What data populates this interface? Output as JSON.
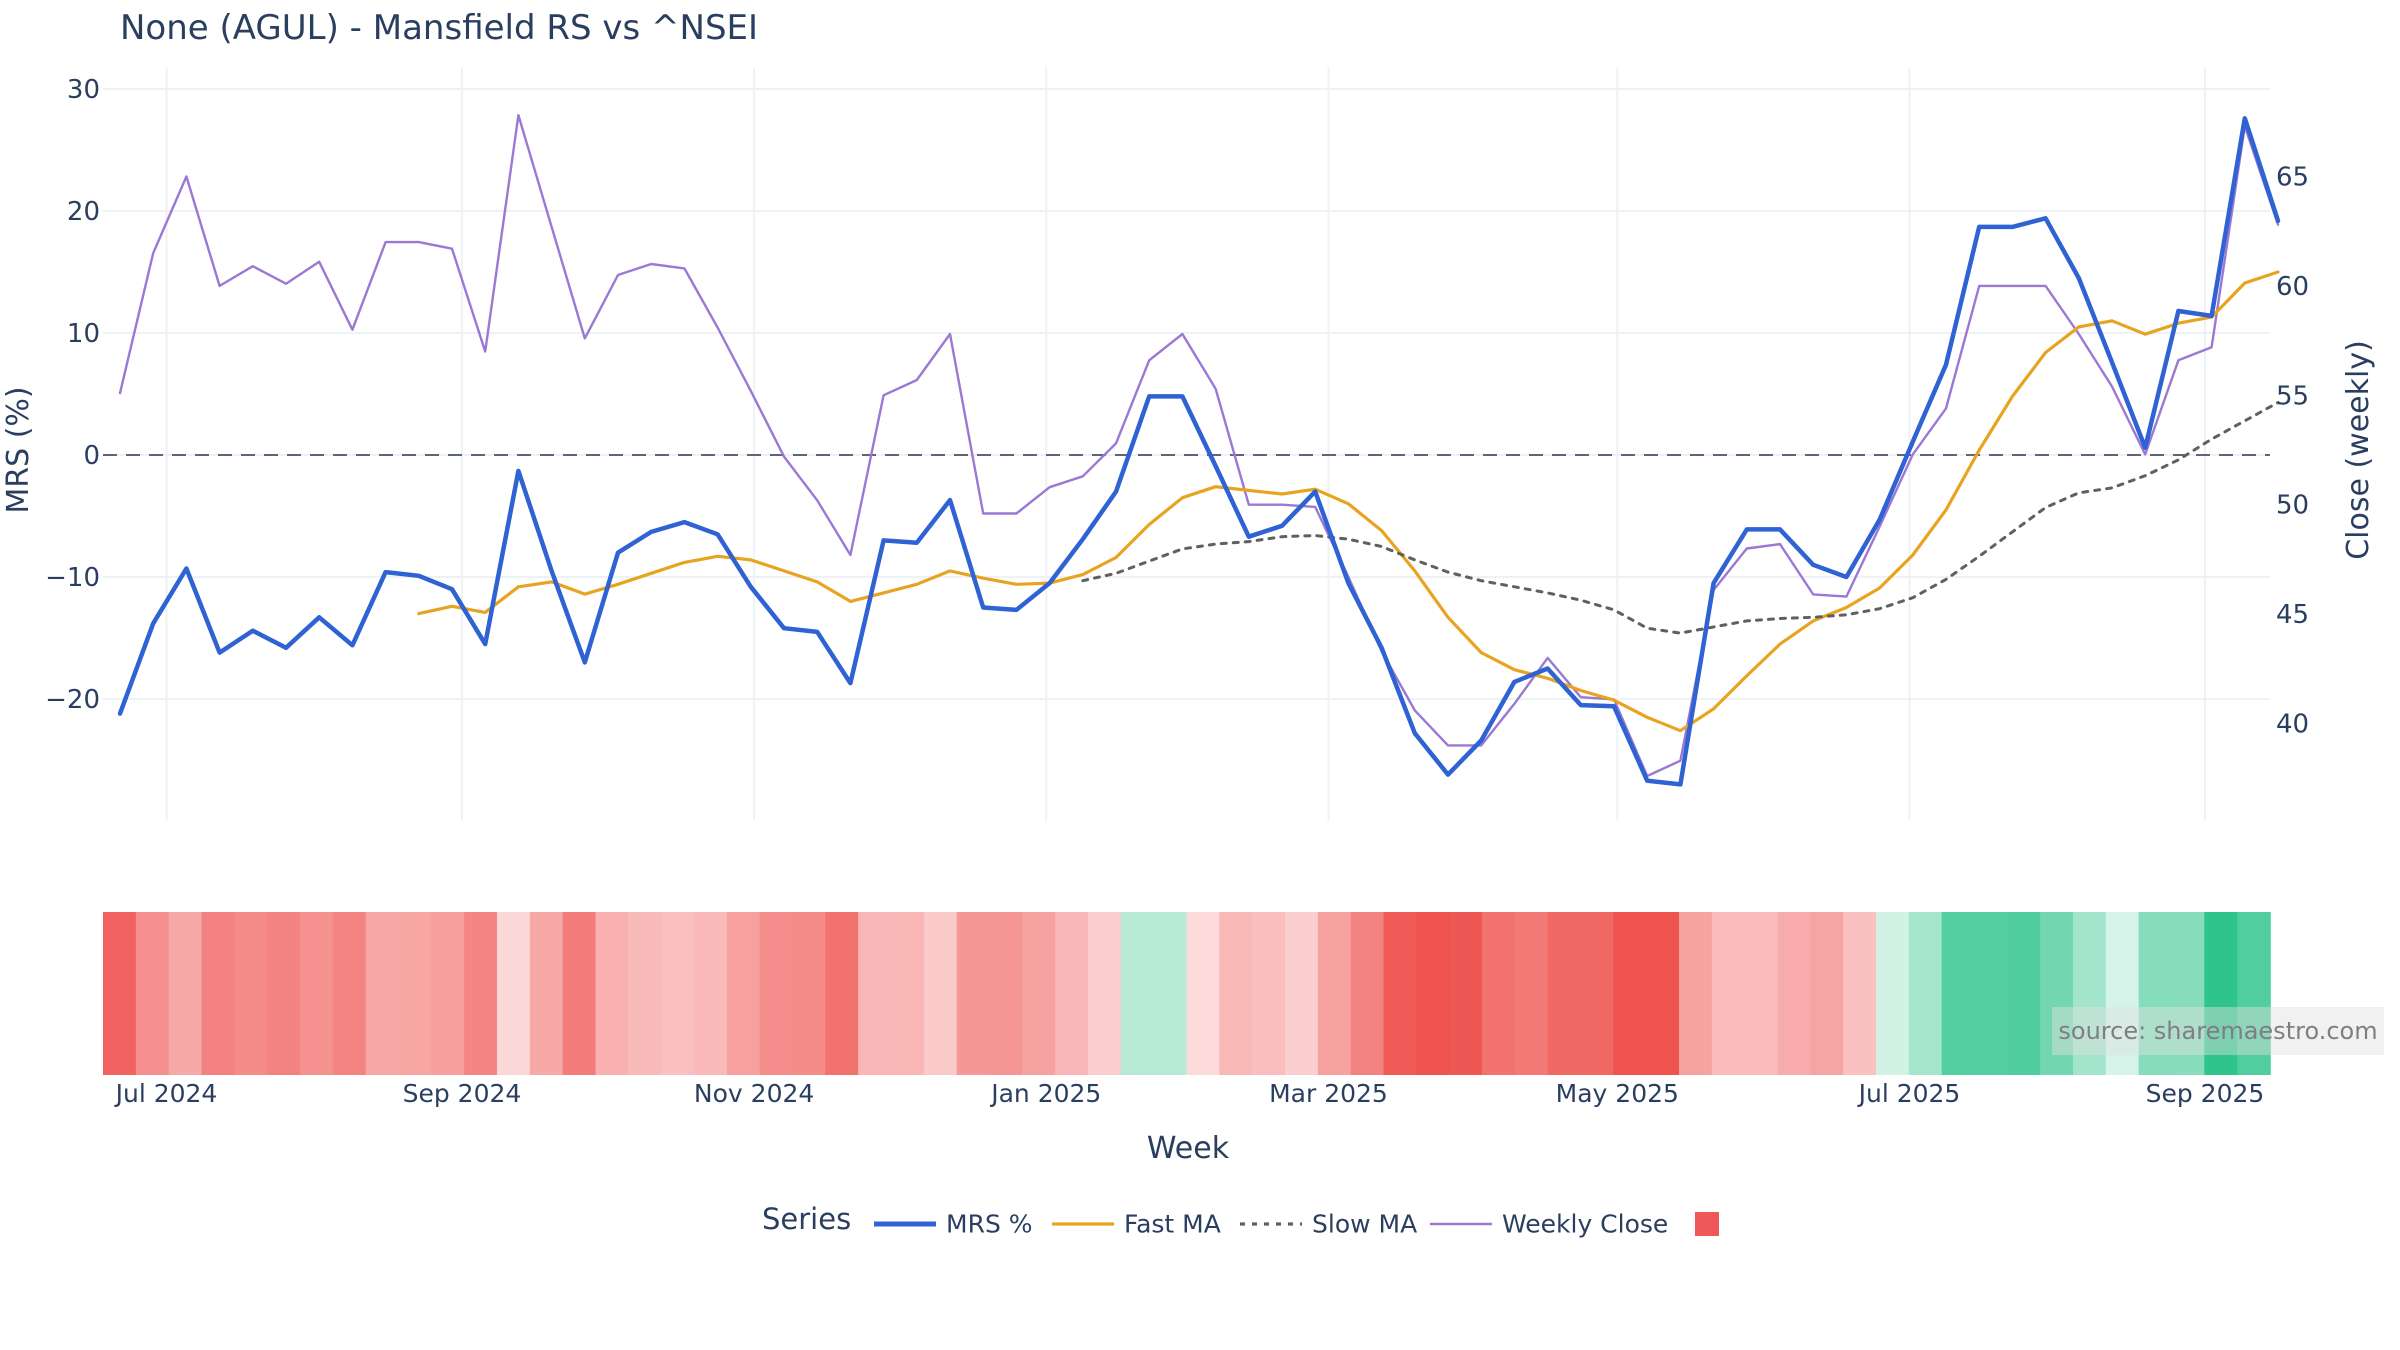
{
  "title": "None (AGUL) - Mansfield RS vs ^NSEI",
  "source_label": "source: sharemaestro.com",
  "legend": {
    "title": "Series",
    "items": [
      {
        "label": "MRS %",
        "color": "#2f62d3",
        "style": "solid-thick"
      },
      {
        "label": "Fast MA",
        "color": "#e8a420",
        "style": "solid"
      },
      {
        "label": "Slow MA",
        "color": "#606060",
        "style": "dotted"
      },
      {
        "label": "Weekly Close",
        "color": "#9b78d4",
        "style": "solid-thin"
      },
      {
        "label": "",
        "color": "#ef5858",
        "style": "square"
      }
    ]
  },
  "chart_data": [
    {
      "type": "line",
      "title": "None (AGUL) - Mansfield RS vs ^NSEI",
      "xlabel": "",
      "ylabel": "MRS (%)",
      "y2label": "Close (weekly)",
      "x_ticks": [
        "Jul 2024",
        "Sep 2024",
        "Nov 2024",
        "Jan 2025",
        "Mar 2025",
        "May 2025",
        "Jul 2025",
        "Sep 2025"
      ],
      "x_tick_weeks": [
        1.4,
        10.3,
        19.1,
        27.9,
        36.4,
        45.1,
        53.9,
        62.8
      ],
      "y_ticks": [
        30,
        20,
        10,
        0,
        -10,
        -20
      ],
      "ylim": [
        -30,
        30
      ],
      "y2_ticks": [
        65,
        60,
        55,
        50,
        45,
        40
      ],
      "y2lim": [
        35.9,
        69.4
      ],
      "grid": true,
      "zero_line": "dashed",
      "weeks": 67,
      "series": [
        {
          "name": "MRS %",
          "color": "#2f62d3",
          "start_week": 0,
          "values": [
            -21.2,
            -13.8,
            -9.3,
            -16.2,
            -14.4,
            -15.8,
            -13.3,
            -15.6,
            -9.6,
            -9.9,
            -11,
            -15.5,
            -1.3,
            -9.5,
            -17.0,
            -8.0,
            -6.3,
            -5.5,
            -6.5,
            -10.8,
            -14.2,
            -14.5,
            -18.7,
            -7.0,
            -7.2,
            -3.7,
            -12.5,
            -12.7,
            -10.5,
            -6.9,
            -3.0,
            4.8,
            4.8,
            -0.9,
            -6.7,
            -5.8,
            -3.0,
            -10.5,
            -15.8,
            -22.8,
            -26.2,
            -23.4,
            -18.6,
            -17.5,
            -20.5,
            -20.6,
            -26.7,
            -27.0,
            -10.5,
            -6.1,
            -6.1,
            -9.0,
            -10.0,
            -5.3,
            1.1,
            7.4,
            18.7,
            18.7,
            19.4,
            14.5,
            7.6,
            0.6,
            11.8,
            11.4,
            27.6,
            19.2
          ]
        },
        {
          "name": "Fast MA",
          "color": "#e8a420",
          "start_week": 9,
          "values": [
            -13.0,
            -12.4,
            -12.9,
            -10.8,
            -10.4,
            -11.4,
            -10.6,
            -9.7,
            -8.8,
            -8.3,
            -8.6,
            -9.5,
            -10.4,
            -12.0,
            -11.3,
            -10.6,
            -9.5,
            -10.1,
            -10.6,
            -10.5,
            -9.8,
            -8.4,
            -5.7,
            -3.5,
            -2.6,
            -2.9,
            -3.2,
            -2.8,
            -4.0,
            -6.2,
            -9.5,
            -13.3,
            -16.2,
            -17.6,
            -18.3,
            -19.3,
            -20.1,
            -21.5,
            -22.6,
            -20.8,
            -18.1,
            -15.5,
            -13.6,
            -12.5,
            -10.9,
            -8.2,
            -4.5,
            0.4,
            4.8,
            8.4,
            10.5,
            11.0,
            9.9,
            10.8,
            11.3,
            14.1,
            15.0
          ]
        },
        {
          "name": "Slow MA",
          "color": "#606060",
          "start_week": 29,
          "values": [
            -10.3,
            -9.7,
            -8.7,
            -7.7,
            -7.3,
            -7.1,
            -6.7,
            -6.6,
            -6.9,
            -7.5,
            -8.6,
            -9.6,
            -10.3,
            -10.8,
            -11.3,
            -11.9,
            -12.7,
            -14.2,
            -14.6,
            -14.1,
            -13.6,
            -13.4,
            -13.3,
            -13.1,
            -12.6,
            -11.7,
            -10.2,
            -8.3,
            -6.3,
            -4.3,
            -3.1,
            -2.7,
            -1.7,
            -0.4,
            1.3,
            2.8,
            4.3
          ]
        },
        {
          "name": "Weekly Close",
          "color": "#9b78d4",
          "start_week": 0,
          "axis": "y2",
          "values": [
            55.1,
            61.5,
            65.0,
            60.0,
            60.9,
            60.1,
            61.1,
            58.0,
            62.0,
            62.0,
            61.7,
            57.0,
            67.8,
            62.7,
            57.6,
            60.5,
            61.0,
            60.8,
            58.1,
            55.2,
            52.2,
            50.2,
            47.7,
            55.0,
            55.7,
            57.8,
            49.6,
            49.6,
            50.8,
            51.3,
            52.8,
            56.6,
            57.8,
            55.3,
            50.0,
            50.0,
            49.9,
            46.7,
            43.3,
            40.6,
            39.0,
            39.0,
            40.9,
            43.0,
            41.2,
            41.1,
            37.6,
            38.3,
            46.1,
            48.0,
            48.2,
            45.9,
            45.8,
            49.0,
            52.3,
            54.4,
            60.0,
            60.0,
            60.0,
            57.8,
            55.4,
            52.3,
            56.6,
            57.2,
            67.3,
            62.8
          ]
        }
      ]
    },
    {
      "type": "heatmap",
      "xlabel": "Week",
      "x_ticks": [
        "Jul 2024",
        "Sep 2024",
        "Nov 2024",
        "Jan 2025",
        "Mar 2025",
        "May 2025",
        "Jul 2025",
        "Sep 2025"
      ],
      "colorscale": "red (negative MRS) to green (positive MRS)",
      "values": [
        -21.2,
        -13.8,
        -9.3,
        -16.2,
        -14.4,
        -15.8,
        -13.3,
        -15.6,
        -9.6,
        -9.9,
        -11,
        -15.5,
        -1.3,
        -9.5,
        -17.0,
        -8.0,
        -6.3,
        -5.5,
        -6.5,
        -10.8,
        -14.2,
        -14.5,
        -18.7,
        -7.0,
        -7.2,
        -3.7,
        -12.5,
        -12.7,
        -10.5,
        -6.9,
        -3.0,
        4.8,
        4.8,
        -0.9,
        -6.7,
        -5.8,
        -3.0,
        -10.5,
        -15.8,
        -22.8,
        -26.2,
        -23.4,
        -18.6,
        -17.5,
        -20.5,
        -20.6,
        -26.7,
        -27.0,
        -10.5,
        -6.1,
        -6.1,
        -9.0,
        -10.0,
        -5.3,
        1.1,
        7.4,
        18.7,
        18.7,
        19.4,
        14.5,
        7.6,
        0.6,
        11.8,
        11.4,
        27.6,
        19.2
      ]
    }
  ]
}
